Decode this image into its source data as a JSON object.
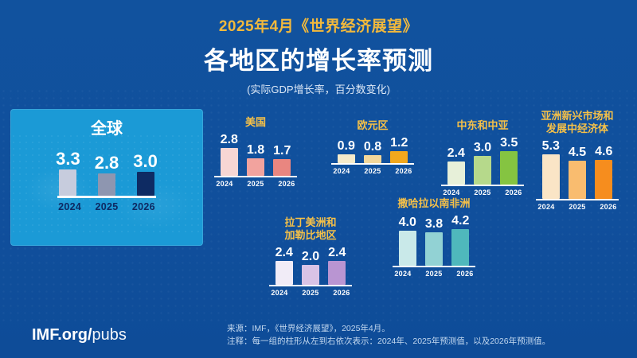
{
  "theme": {
    "background": "#11529e",
    "panel_blue": "#1b9ad6",
    "accent_gold": "#f2b93c",
    "baseline_white": "#ffffff"
  },
  "header": {
    "eyebrow": "2025年4月《世界经济展望》",
    "title": "各地区的增长率预测",
    "subtitle": "(实际GDP增长率，百分数变化)"
  },
  "footer": {
    "logo_bold": "IMF.org/",
    "logo_light": "pubs",
    "source": "来源：IMF，《世界经济展望》，2025年4月。",
    "note": "注释：每一组的柱形从左到右依次表示：2024年、2025年预测值，以及2026年预测值。"
  },
  "chart_data": [
    {
      "id": "global",
      "type": "bar",
      "title": "全球",
      "categories": [
        "2024",
        "2025",
        "2026"
      ],
      "values": [
        3.3,
        2.8,
        3.0
      ],
      "colors": [
        "#c7ccdd",
        "#8e96b0",
        "#0e2b63"
      ],
      "ylabel": "",
      "legend": false
    },
    {
      "id": "usa",
      "type": "bar",
      "title": "美国",
      "categories": [
        "2024",
        "2025",
        "2026"
      ],
      "values": [
        2.8,
        1.8,
        1.7
      ],
      "colors": [
        "#f7d6d4",
        "#f2a39e",
        "#e98680"
      ],
      "ylabel": "",
      "legend": false
    },
    {
      "id": "euro",
      "type": "bar",
      "title": "欧元区",
      "categories": [
        "2024",
        "2025",
        "2026"
      ],
      "values": [
        0.9,
        0.8,
        1.2
      ],
      "colors": [
        "#f6ebca",
        "#f2d79b",
        "#f2a81d"
      ],
      "ylabel": "",
      "legend": false
    },
    {
      "id": "me-ca",
      "type": "bar",
      "title": "中东和中亚",
      "categories": [
        "2024",
        "2025",
        "2026"
      ],
      "values": [
        2.4,
        3.0,
        3.5
      ],
      "colors": [
        "#e7f0d9",
        "#b6d98b",
        "#85c441"
      ],
      "ylabel": "",
      "legend": false
    },
    {
      "id": "asia",
      "type": "bar",
      "title": "亚洲新兴市场和发展中经济体",
      "title_lines": [
        "亚洲新兴市场和",
        "发展中经济体"
      ],
      "categories": [
        "2024",
        "2025",
        "2026"
      ],
      "values": [
        5.3,
        4.5,
        4.6
      ],
      "colors": [
        "#fae5c6",
        "#f9bc6f",
        "#f68d1e"
      ],
      "ylabel": "",
      "legend": false
    },
    {
      "id": "latam",
      "type": "bar",
      "title": "拉丁美洲和加勒比地区",
      "title_lines": [
        "拉丁美洲和",
        "加勒比地区"
      ],
      "categories": [
        "2024",
        "2025",
        "2026"
      ],
      "values": [
        2.4,
        2.0,
        2.4
      ],
      "colors": [
        "#f1ecf7",
        "#d9c3e6",
        "#b995d2"
      ],
      "ylabel": "",
      "legend": false
    },
    {
      "id": "ssa",
      "type": "bar",
      "title": "撒哈拉以南非洲",
      "categories": [
        "2024",
        "2025",
        "2026"
      ],
      "values": [
        4.0,
        3.8,
        4.2
      ],
      "colors": [
        "#c9e9e9",
        "#92d2d4",
        "#4fb8bc"
      ],
      "ylabel": "",
      "legend": false
    }
  ]
}
